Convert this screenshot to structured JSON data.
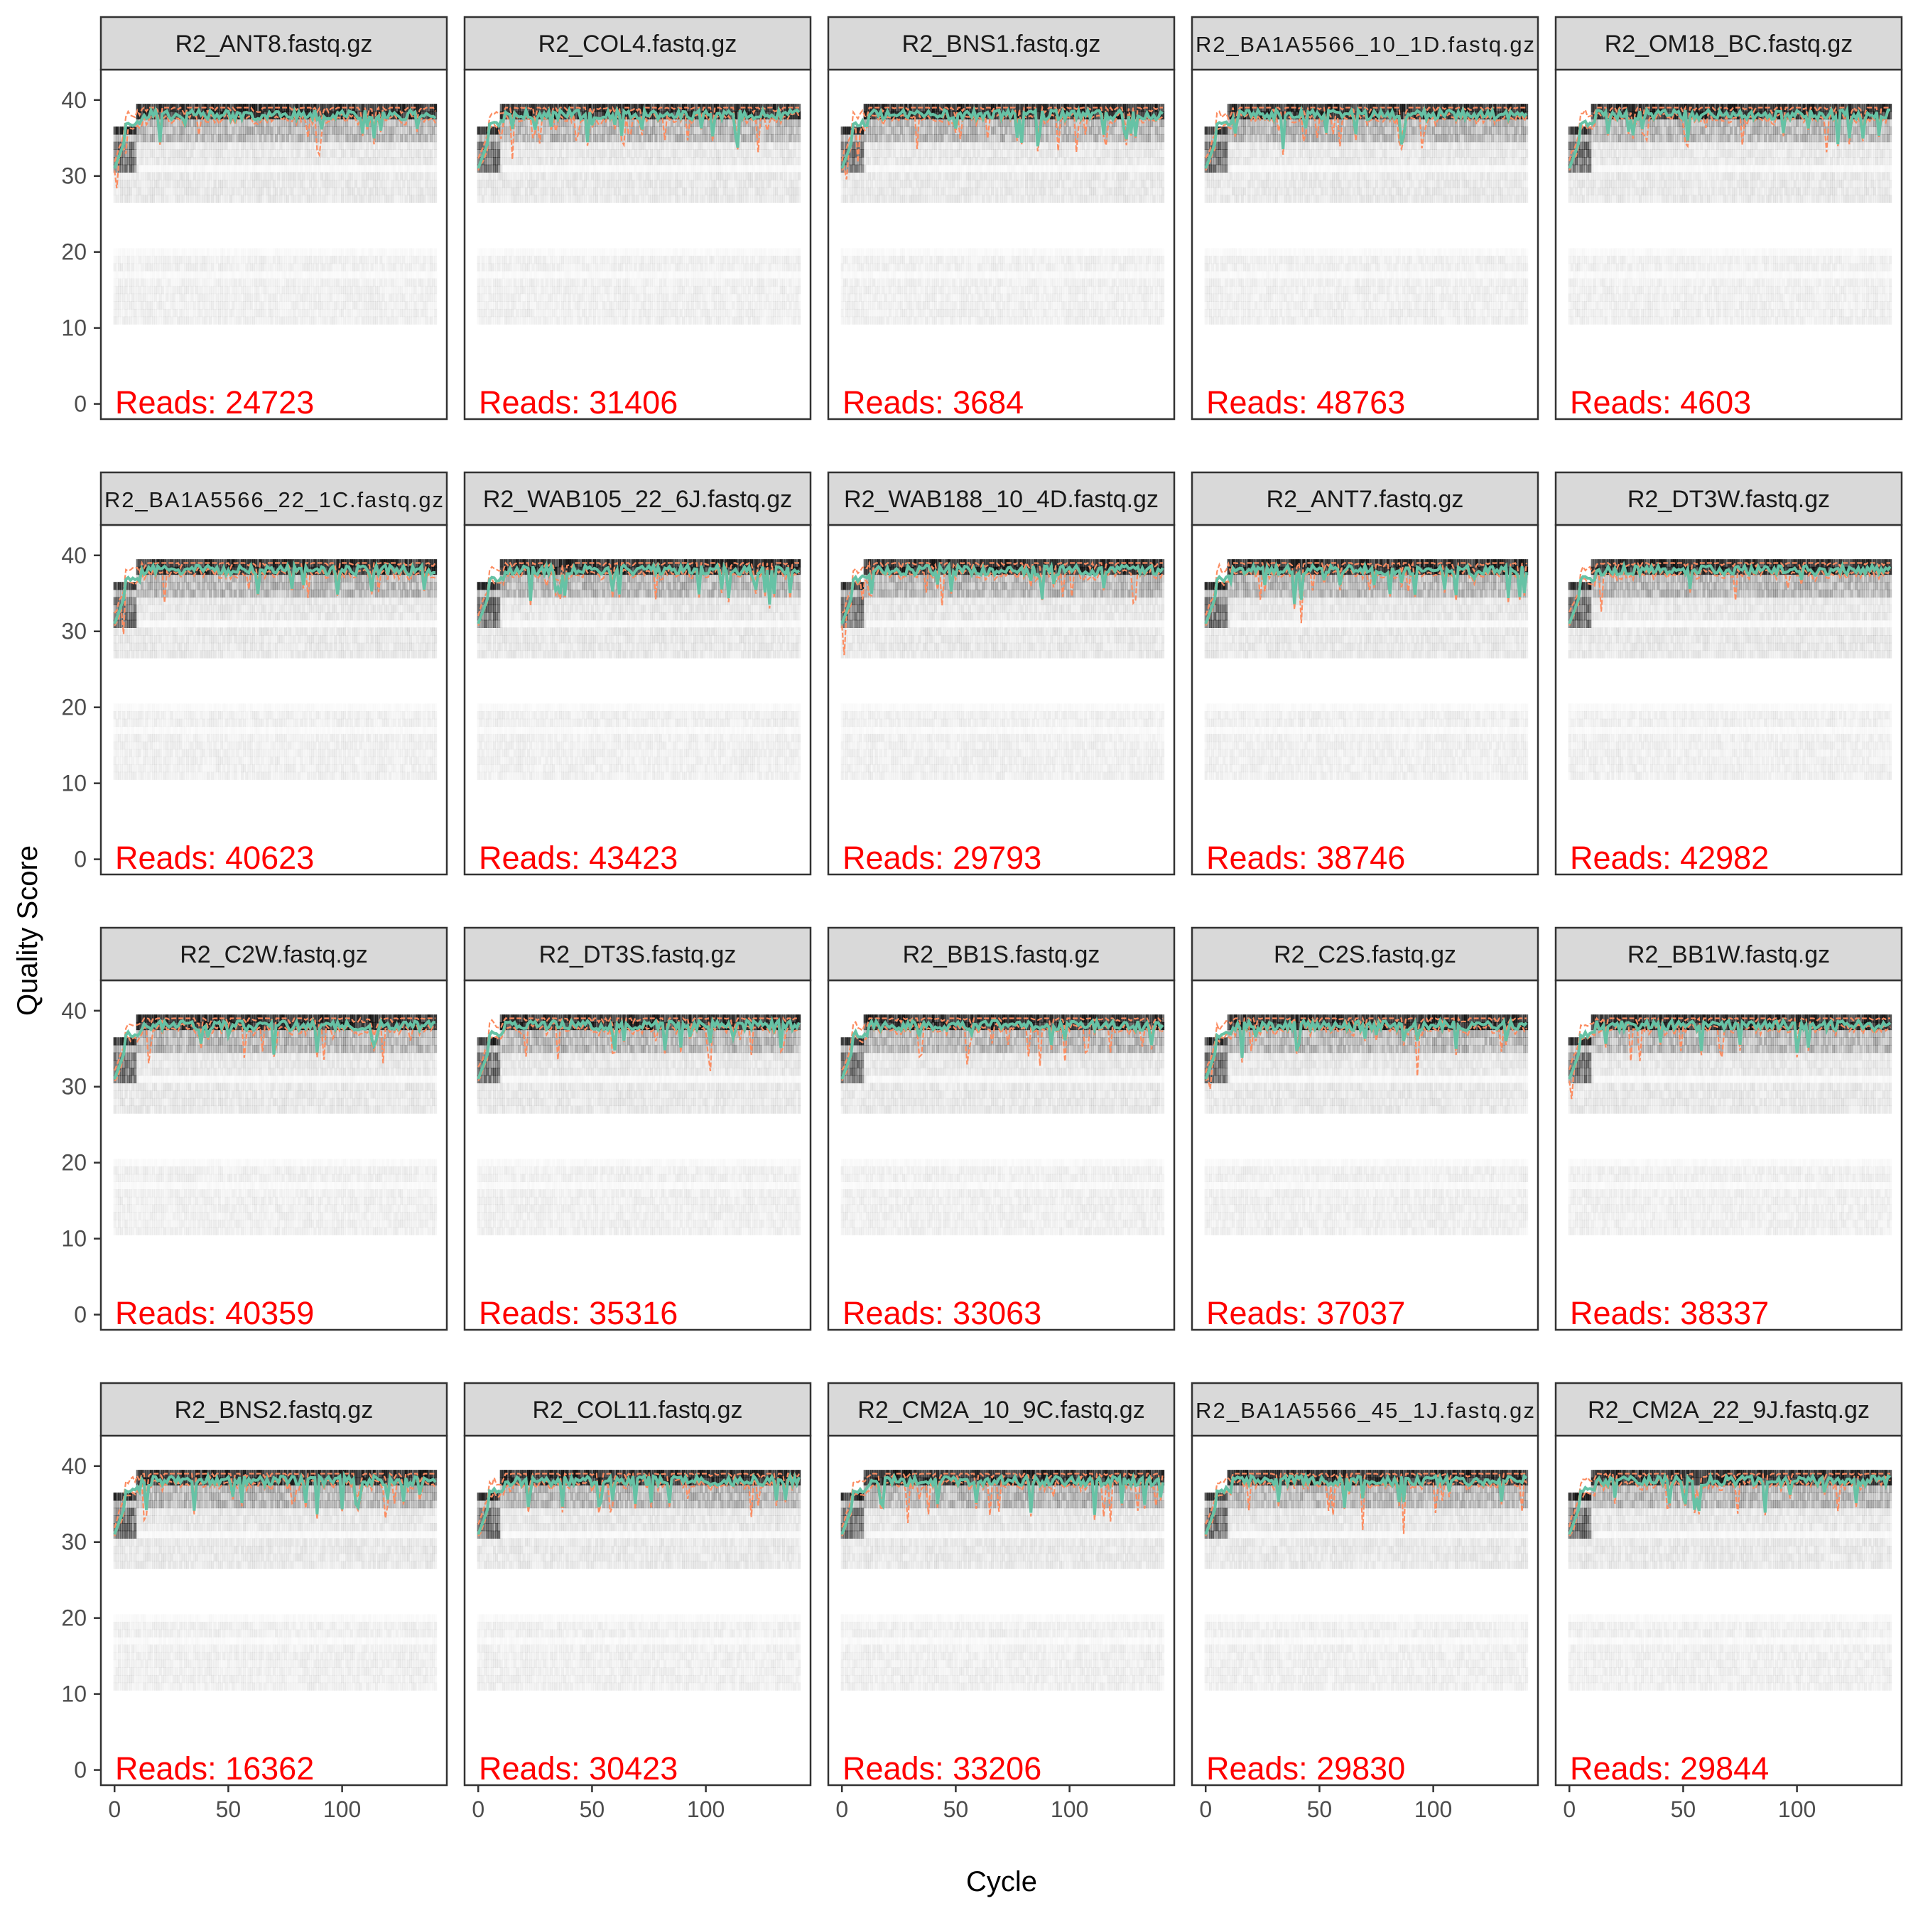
{
  "axis": {
    "xlabel": "Cycle",
    "ylabel": "Quality Score",
    "xlim": [
      -6,
      146
    ],
    "ylim": [
      -2,
      44
    ],
    "xticks": [
      0,
      50,
      100
    ],
    "yticks": [
      0,
      10,
      20,
      30,
      40
    ]
  },
  "colors": {
    "median_line": "#66C2A5",
    "quartile_line": "#FC8D62",
    "read_count_text": "#FF0000",
    "strip_fill": "#D9D9D9",
    "panel_border": "#333333",
    "heatmap_ink": "#000000"
  },
  "reads_prefix": "Reads:  ",
  "chart_data": {
    "type": "heatmap",
    "layout": "facet-grid 4 rows x 5 columns, shared axes",
    "series_legend": [
      {
        "key": "median",
        "color": "#66C2A5",
        "style": "solid"
      },
      {
        "key": "quartiles",
        "color": "#FC8D62",
        "style": "dashed"
      }
    ],
    "panels": [
      {
        "title": "R2_ANT8.fastq.gz",
        "reads": "24723"
      },
      {
        "title": "R2_COL4.fastq.gz",
        "reads": "31406"
      },
      {
        "title": "R2_BNS1.fastq.gz",
        "reads": "3684"
      },
      {
        "title": "R2_BA1A5566_10_1D.fastq.gz",
        "reads": "48763"
      },
      {
        "title": "R2_OM18_BC.fastq.gz",
        "reads": "4603"
      },
      {
        "title": "R2_BA1A5566_22_1C.fastq.gz",
        "reads": "40623"
      },
      {
        "title": "R2_WAB105_22_6J.fastq.gz",
        "reads": "43423"
      },
      {
        "title": "R2_WAB188_10_4D.fastq.gz",
        "reads": "29793"
      },
      {
        "title": "R2_ANT7.fastq.gz",
        "reads": "38746"
      },
      {
        "title": "R2_DT3W.fastq.gz",
        "reads": "42982"
      },
      {
        "title": "R2_C2W.fastq.gz",
        "reads": "40359"
      },
      {
        "title": "R2_DT3S.fastq.gz",
        "reads": "35316"
      },
      {
        "title": "R2_BB1S.fastq.gz",
        "reads": "33063"
      },
      {
        "title": "R2_C2S.fastq.gz",
        "reads": "37037"
      },
      {
        "title": "R2_BB1W.fastq.gz",
        "reads": "38337"
      },
      {
        "title": "R2_BNS2.fastq.gz",
        "reads": "16362"
      },
      {
        "title": "R2_COL11.fastq.gz",
        "reads": "30423"
      },
      {
        "title": "R2_CM2A_10_9C.fastq.gz",
        "reads": "33206"
      },
      {
        "title": "R2_BA1A5566_45_1J.fastq.gz",
        "reads": "29830"
      },
      {
        "title": "R2_CM2A_22_9J.fastq.gz",
        "reads": "29844"
      }
    ],
    "cycle_range": [
      0,
      141
    ],
    "median_quality_range": [
      31,
      39
    ],
    "lower_quality_band": [
      11,
      20
    ]
  }
}
